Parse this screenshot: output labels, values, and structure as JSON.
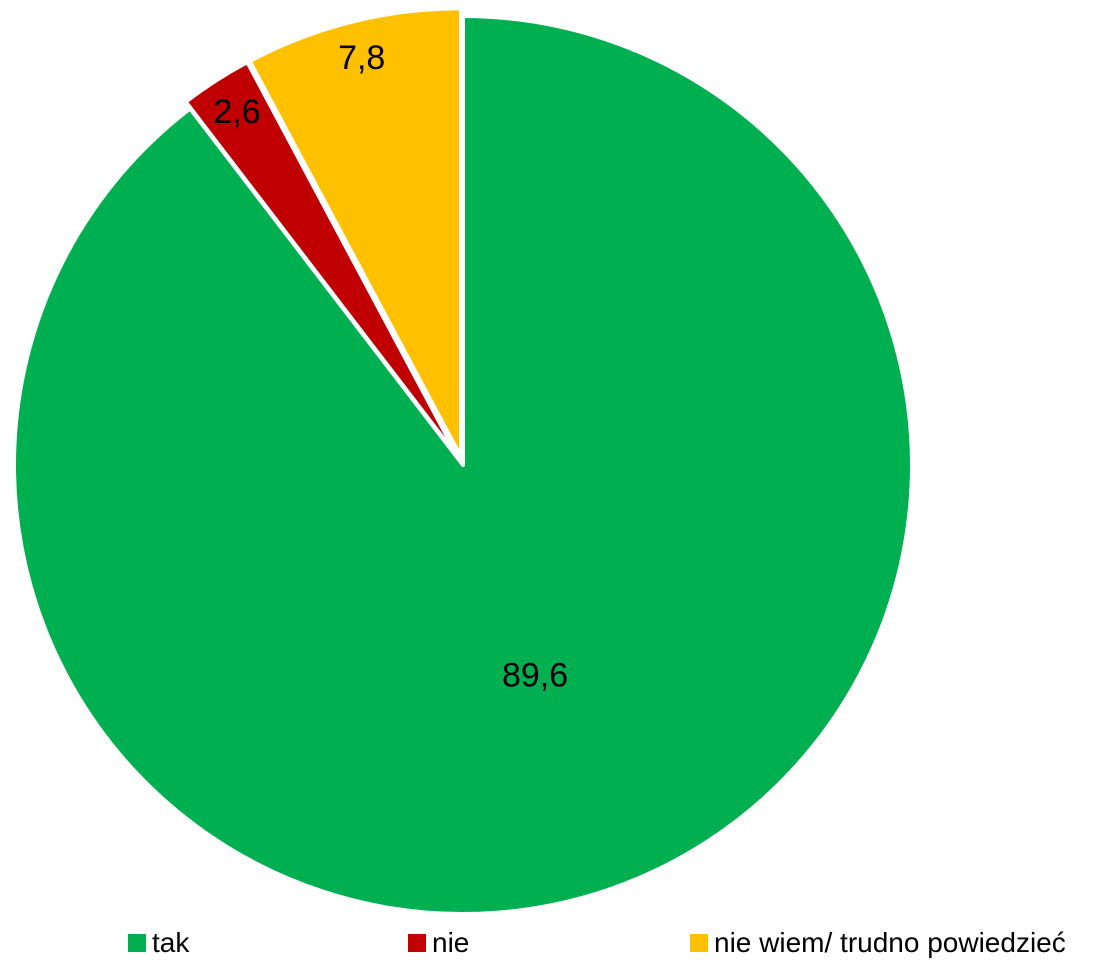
{
  "chart_data": {
    "type": "pie",
    "categories": [
      "tak",
      "nie",
      "nie wiem/ trudno powiedzieć"
    ],
    "values": [
      89.6,
      2.6,
      7.8
    ],
    "data_labels": [
      "89,6",
      "2,6",
      "7,8"
    ],
    "colors": [
      "#00b050",
      "#c00000",
      "#ffc000"
    ],
    "title": "",
    "start_angle": "12 o'clock, clockwise",
    "legend_position": "bottom"
  }
}
